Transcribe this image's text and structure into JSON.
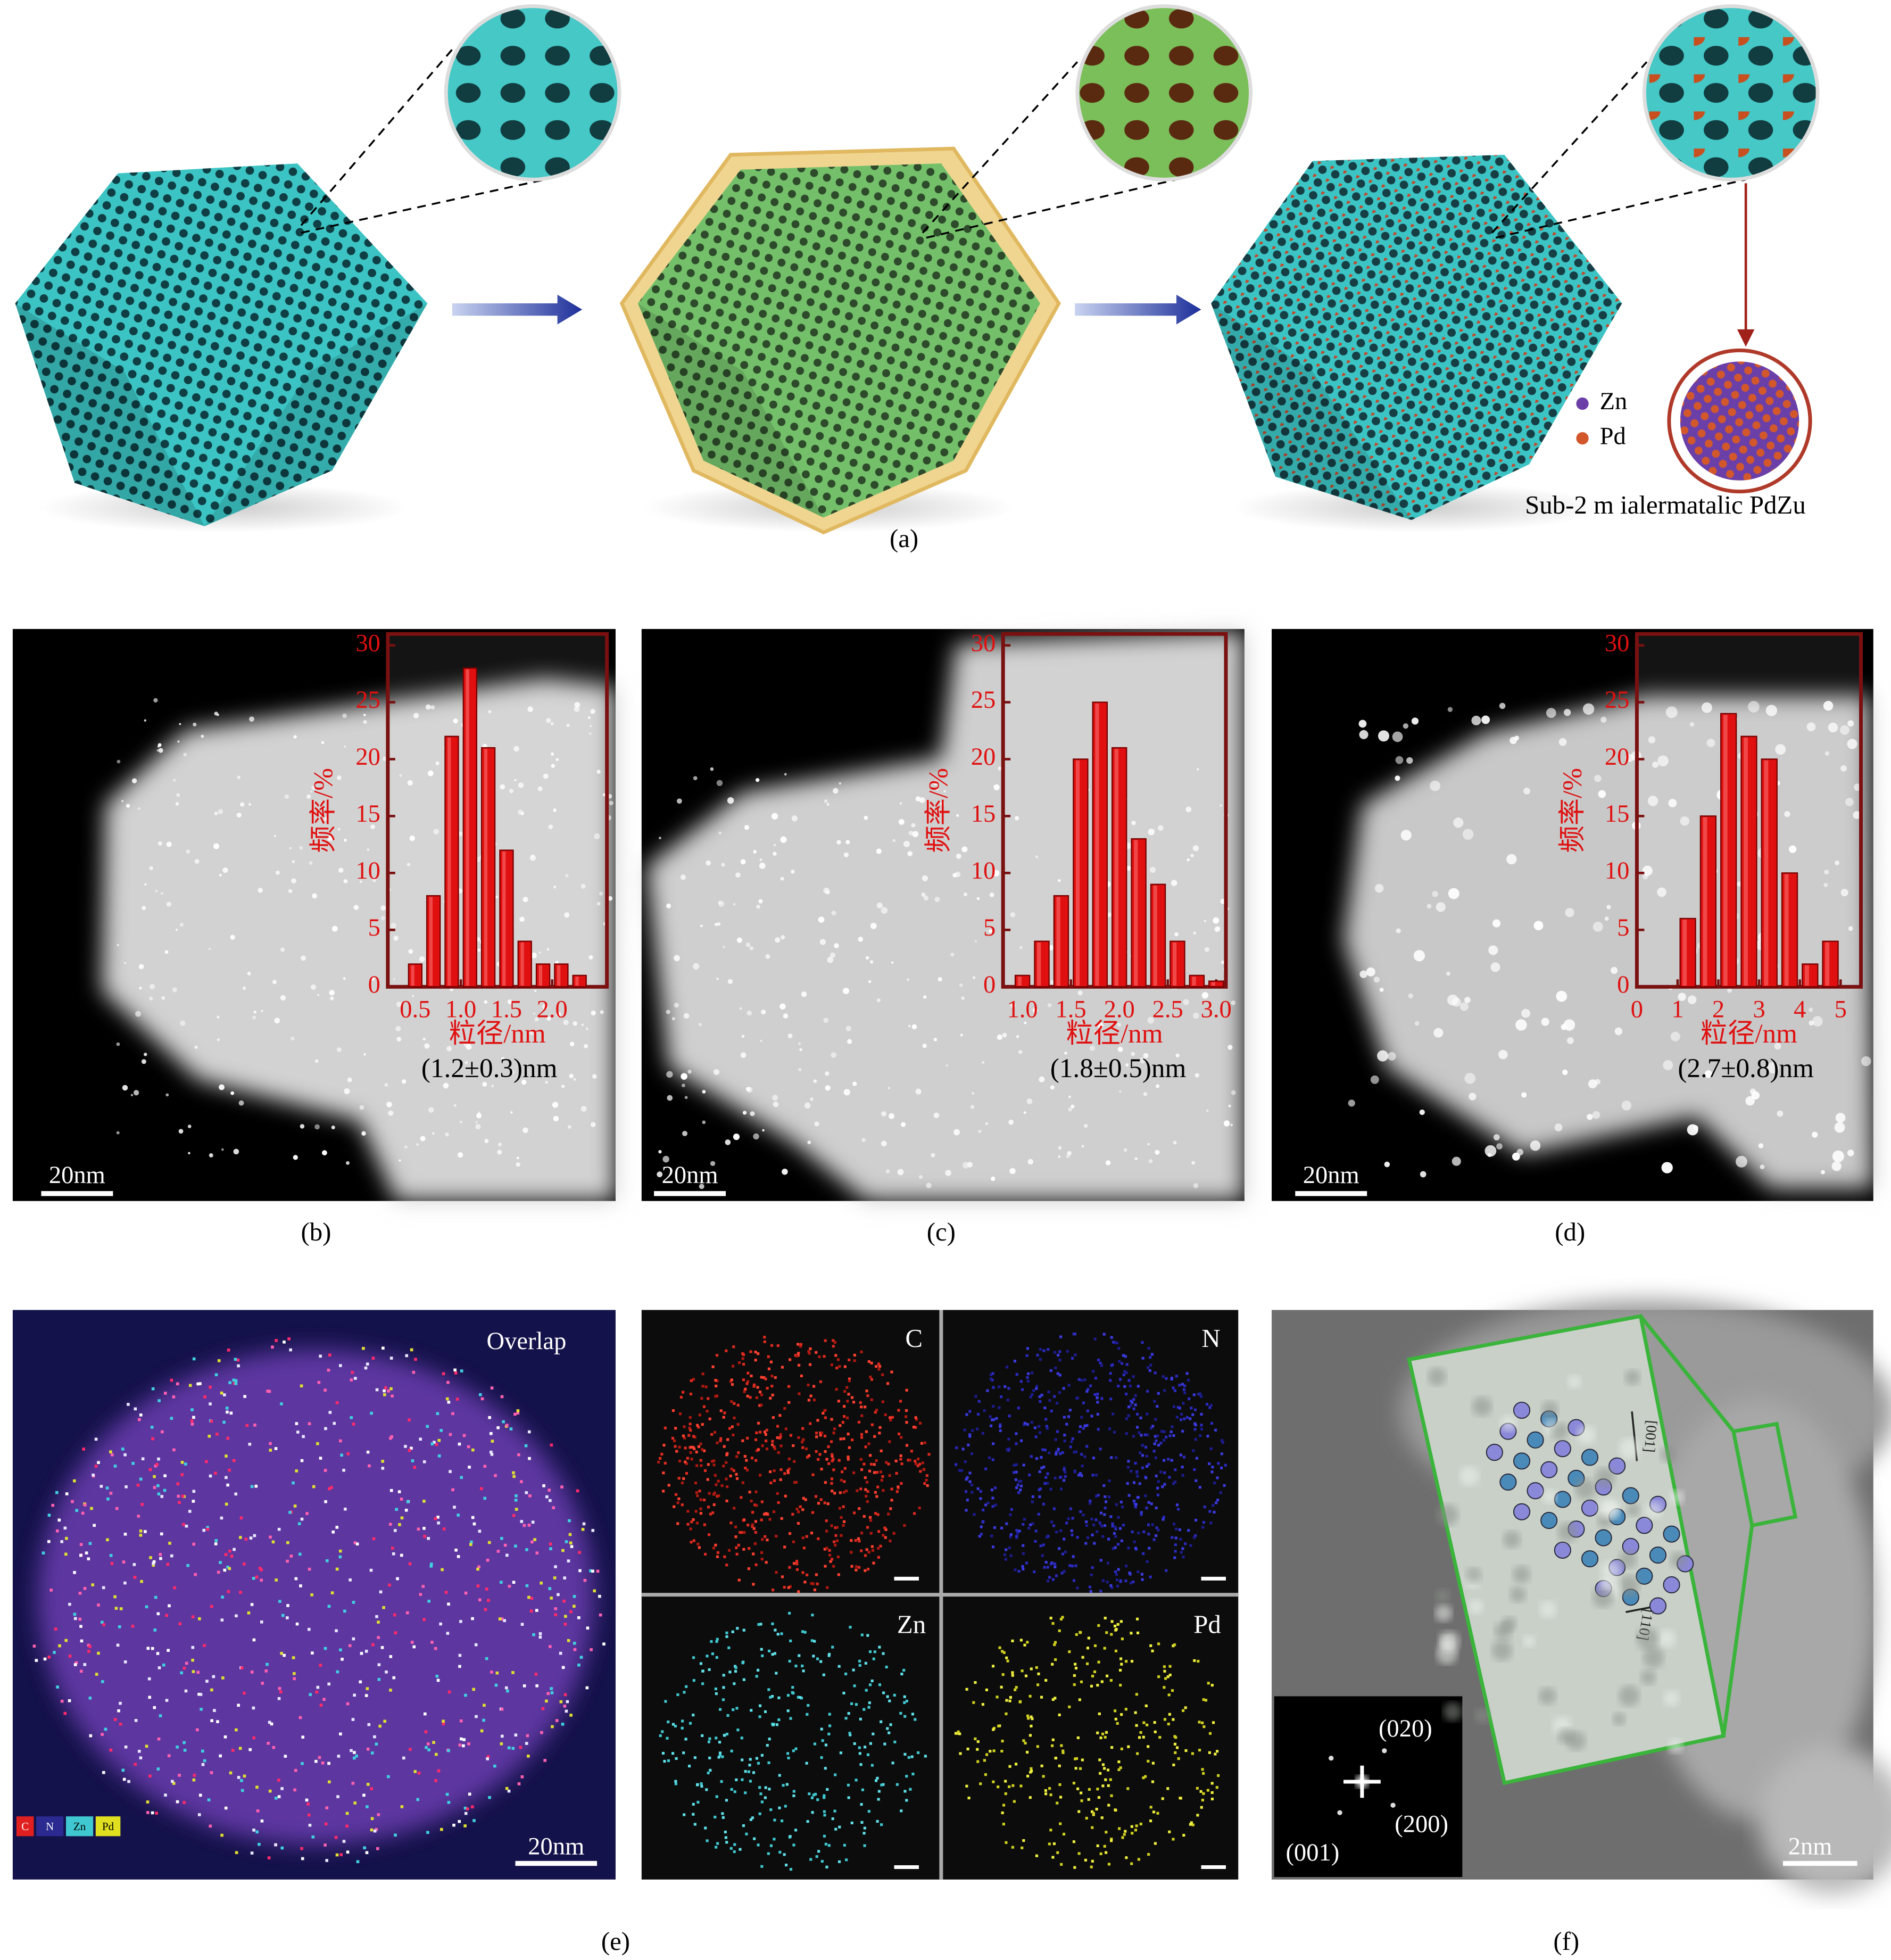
{
  "panel_a": {
    "legend": [
      "Zn",
      "Pd"
    ],
    "caption_text": "Sub-2 m ialermatalic PdZu",
    "label": "(a)"
  },
  "chart_data": [
    {
      "type": "histogram",
      "xlabel": "粒径/nm",
      "ylabel": "频率/%",
      "annotation": "(1.2±0.3)nm",
      "color": "#e01010",
      "bins": [
        0.4,
        0.6,
        0.8,
        1.0,
        1.2,
        1.4,
        1.6,
        1.8,
        2.0,
        2.2,
        2.4
      ],
      "values": [
        2,
        8,
        22,
        28,
        21,
        12,
        4,
        2,
        2,
        1
      ],
      "xlim": [
        0.2,
        2.6
      ],
      "xticks": [
        0.5,
        {
          "value": 1,
          "label": "1.0"
        },
        1.5,
        {
          "value": 2,
          "label": "2.0"
        }
      ],
      "ylim": [
        0,
        31
      ],
      "yticks": [
        0,
        5,
        10,
        15,
        20,
        25,
        30
      ]
    },
    {
      "type": "histogram",
      "xlabel": "粒径/nm",
      "ylabel": "频率/%",
      "annotation": "(1.8±0.5)nm",
      "color": "#e01010",
      "bins": [
        0.9,
        1.1,
        1.3,
        1.5,
        1.7,
        1.9,
        2.1,
        2.3,
        2.5,
        2.7,
        2.9,
        3.1
      ],
      "values": [
        1,
        4,
        8,
        20,
        25,
        21,
        13,
        9,
        4,
        1,
        0.5
      ],
      "xlim": [
        0.8,
        3.1
      ],
      "xticks": [
        {
          "value": 1,
          "label": "1.0"
        },
        1.5,
        {
          "value": 2,
          "label": "2.0"
        },
        2.5,
        {
          "value": 3,
          "label": "3.0"
        }
      ],
      "ylim": [
        0,
        31
      ],
      "yticks": [
        0,
        5,
        10,
        15,
        20,
        25,
        30
      ]
    },
    {
      "type": "histogram",
      "xlabel": "粒径/nm",
      "ylabel": "频率/%",
      "annotation": "(2.7±0.8)nm",
      "color": "#e01010",
      "bins": [
        1,
        1.5,
        2,
        2.5,
        3,
        3.5,
        4,
        4.5,
        5
      ],
      "values": [
        6,
        15,
        24,
        22,
        20,
        10,
        2,
        4
      ],
      "xlim": [
        0,
        5.5
      ],
      "xticks": [
        0,
        1,
        2,
        3,
        4,
        5
      ],
      "ylim": [
        0,
        31
      ],
      "yticks": [
        0,
        5,
        10,
        15,
        20,
        25,
        30
      ]
    }
  ],
  "panels": {
    "b": {
      "label": "(b)",
      "scale_bar": "20nm"
    },
    "c": {
      "label": "(c)",
      "scale_bar": "20nm"
    },
    "d": {
      "label": "(d)",
      "scale_bar": "20nm"
    }
  },
  "panel_e": {
    "overlap": "Overlap",
    "scale_bar": "20nm",
    "legend": [
      "C",
      "N",
      "Zn",
      "Pd"
    ],
    "maps": [
      "C",
      "N",
      "Zn",
      "Pd"
    ],
    "label": "(e)"
  },
  "panel_f": {
    "spots": [
      "(020)",
      "(200)",
      "(001)"
    ],
    "directions": [
      "[001]",
      "[110]"
    ],
    "scale_bar": "2nm",
    "label": "(f)"
  }
}
